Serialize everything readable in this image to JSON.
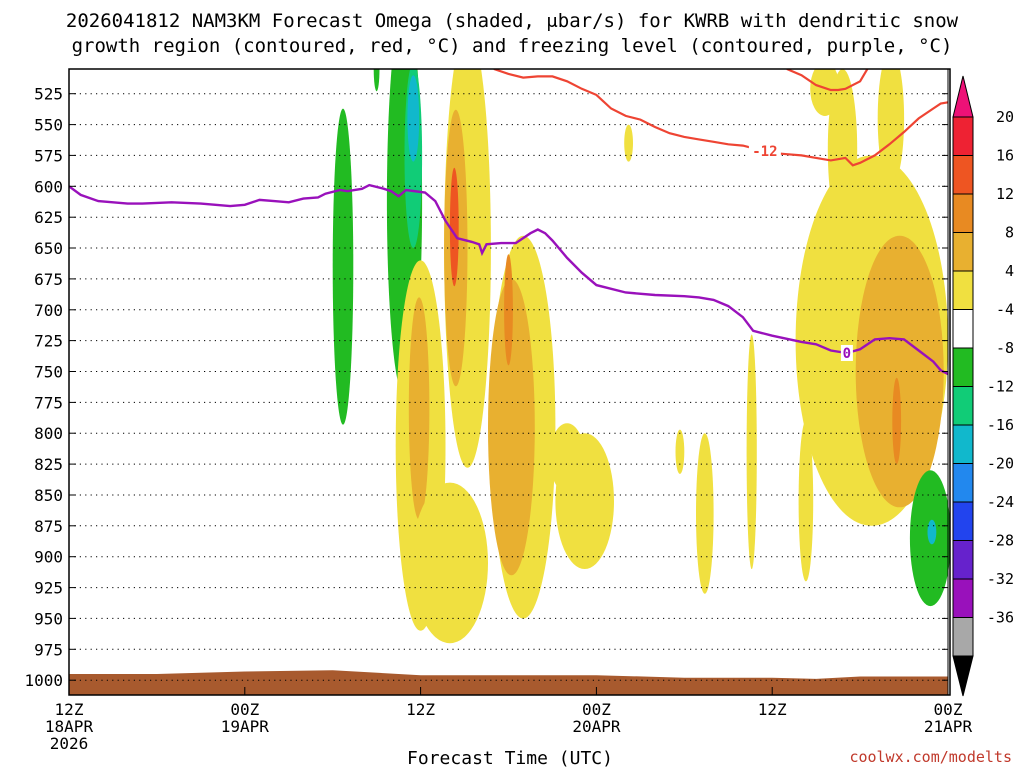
{
  "chart_data": {
    "type": "heatmap",
    "title_lines": [
      "2026041812 NAM3KM Forecast Omega (shaded, μbar/s) for KWRB with dendritic snow",
      "growth region (contoured, red, °C) and freezing level (contoured, purple, °C)"
    ],
    "xlabel": "Forecast Time (UTC)",
    "ylabel": "",
    "credit": "coolwx.com/modelts",
    "x_range_hours": [
      0,
      60
    ],
    "y_range_hpa": [
      505,
      1012
    ],
    "x_ticks": [
      {
        "hour": 0,
        "lines": [
          "12Z",
          "18APR",
          "2026"
        ]
      },
      {
        "hour": 12,
        "lines": [
          "00Z",
          "19APR"
        ]
      },
      {
        "hour": 24,
        "lines": [
          "12Z"
        ]
      },
      {
        "hour": 36,
        "lines": [
          "00Z",
          "20APR"
        ]
      },
      {
        "hour": 48,
        "lines": [
          "12Z"
        ]
      },
      {
        "hour": 60,
        "lines": [
          "00Z",
          "21APR"
        ]
      }
    ],
    "y_ticks": [
      525,
      550,
      575,
      600,
      625,
      650,
      675,
      700,
      725,
      750,
      775,
      800,
      825,
      850,
      875,
      900,
      925,
      950,
      975,
      1000
    ],
    "colorbar": {
      "labels": [
        "20",
        "16",
        "12",
        "8",
        "4",
        "-4",
        "-8",
        "-12",
        "-16",
        "-20",
        "-24",
        "-28",
        "-32",
        "-36"
      ],
      "colors": [
        "#ee2233",
        "#ee5522",
        "#e88a22",
        "#e8b030",
        "#f0e040",
        "#ffffff",
        "#22bb22",
        "#11cc77",
        "#11b8cc",
        "#2288ee",
        "#2244ee",
        "#6622cc",
        "#9911bb",
        "#a8a8a8"
      ],
      "top_color": "#ee1177",
      "bottom_color": "#000000"
    },
    "freezing_level": {
      "name": "freezing level (0°C)",
      "color": "#9911bb",
      "label": "0",
      "label_hour": 53.1,
      "points": [
        [
          0,
          600
        ],
        [
          0.8,
          607
        ],
        [
          2,
          612
        ],
        [
          4,
          614
        ],
        [
          5,
          614
        ],
        [
          7,
          613
        ],
        [
          9,
          614
        ],
        [
          11,
          616
        ],
        [
          12,
          615
        ],
        [
          13,
          611
        ],
        [
          14,
          612
        ],
        [
          15,
          613
        ],
        [
          16,
          610
        ],
        [
          17,
          609
        ],
        [
          17.5,
          606
        ],
        [
          18.5,
          603
        ],
        [
          19,
          604
        ],
        [
          20,
          602
        ],
        [
          20.5,
          599
        ],
        [
          21.5,
          602
        ],
        [
          22,
          604
        ],
        [
          22.5,
          608
        ],
        [
          23,
          603
        ],
        [
          24.3,
          605
        ],
        [
          25,
          612
        ],
        [
          25.7,
          628
        ],
        [
          26.5,
          642
        ],
        [
          27.5,
          645
        ],
        [
          28,
          647
        ],
        [
          28.2,
          654
        ],
        [
          28.5,
          647
        ],
        [
          29.5,
          646
        ],
        [
          30.5,
          646
        ],
        [
          31.5,
          638
        ],
        [
          32,
          635
        ],
        [
          32.5,
          638
        ],
        [
          33,
          644
        ],
        [
          34,
          658
        ],
        [
          35,
          670
        ],
        [
          36,
          680
        ],
        [
          38,
          686
        ],
        [
          40,
          688
        ],
        [
          42,
          689
        ],
        [
          43,
          690
        ],
        [
          44,
          692
        ],
        [
          45,
          697
        ],
        [
          46,
          706
        ],
        [
          46.7,
          717
        ],
        [
          48,
          721
        ],
        [
          50,
          726
        ],
        [
          51,
          728
        ],
        [
          52,
          733
        ],
        [
          53.1,
          735
        ],
        [
          54,
          732
        ],
        [
          55,
          724
        ],
        [
          56,
          723
        ],
        [
          57,
          724
        ],
        [
          58,
          733
        ],
        [
          59,
          742
        ],
        [
          59.5,
          749
        ],
        [
          60,
          752
        ]
      ]
    },
    "dgz_contour": {
      "name": "dendritic snow growth region (-12°C)",
      "color": "#ee4433",
      "label": "-12",
      "label_hour": 47.5,
      "points": [
        [
          29,
          505
        ],
        [
          30,
          509
        ],
        [
          31,
          512
        ],
        [
          32,
          511
        ],
        [
          33,
          511
        ],
        [
          34,
          515
        ],
        [
          35,
          521
        ],
        [
          36,
          526
        ],
        [
          37,
          537
        ],
        [
          38,
          543
        ],
        [
          39,
          546
        ],
        [
          40,
          552
        ],
        [
          41,
          557
        ],
        [
          42,
          560
        ],
        [
          43,
          562
        ],
        [
          44,
          564
        ],
        [
          45,
          566
        ],
        [
          46,
          567
        ],
        [
          47,
          570
        ],
        [
          48,
          573
        ],
        [
          49,
          574
        ],
        [
          50,
          575
        ],
        [
          51,
          577
        ],
        [
          52,
          579
        ],
        [
          53,
          577
        ],
        [
          53.5,
          583
        ],
        [
          54,
          581
        ],
        [
          55,
          575
        ],
        [
          56,
          566
        ],
        [
          57,
          556
        ],
        [
          58,
          545
        ],
        [
          59,
          537
        ],
        [
          59.5,
          533
        ],
        [
          60,
          532
        ]
      ],
      "upper_points": [
        [
          49,
          505
        ],
        [
          50,
          510
        ],
        [
          51,
          518
        ],
        [
          52,
          522
        ],
        [
          52.5,
          522
        ],
        [
          53,
          521
        ],
        [
          54,
          515
        ],
        [
          54.5,
          505
        ]
      ]
    },
    "omega_blobs": [
      {
        "hour": 18.7,
        "hpa": 665,
        "width_h": 0.7,
        "half_depth_hpa": 128,
        "value": -6
      },
      {
        "hour": 22.9,
        "hpa": 612,
        "width_h": 1.2,
        "half_depth_hpa": 158,
        "value": -6
      },
      {
        "hour": 23.5,
        "hpa": 575,
        "width_h": 0.6,
        "half_depth_hpa": 75,
        "value": -10
      },
      {
        "hour": 23.5,
        "hpa": 545,
        "width_h": 0.4,
        "half_depth_hpa": 35,
        "value": -13
      },
      {
        "hour": 21.0,
        "hpa": 505,
        "width_h": 0.2,
        "half_depth_hpa": 18,
        "value": -6
      },
      {
        "hour": 27.2,
        "hpa": 650,
        "width_h": 1.6,
        "half_depth_hpa": 178,
        "value": 6
      },
      {
        "hour": 26.4,
        "hpa": 650,
        "width_h": 0.8,
        "half_depth_hpa": 112,
        "value": 11
      },
      {
        "hour": 26.3,
        "hpa": 633,
        "width_h": 0.3,
        "half_depth_hpa": 48,
        "value": 18
      },
      {
        "hour": 31.0,
        "hpa": 795,
        "width_h": 2.2,
        "half_depth_hpa": 155,
        "value": 7
      },
      {
        "hour": 30.2,
        "hpa": 795,
        "width_h": 1.6,
        "half_depth_hpa": 120,
        "value": 10
      },
      {
        "hour": 30.0,
        "hpa": 700,
        "width_h": 0.3,
        "half_depth_hpa": 45,
        "value": 14
      },
      {
        "hour": 24.0,
        "hpa": 810,
        "width_h": 1.7,
        "half_depth_hpa": 150,
        "value": 6
      },
      {
        "hour": 23.9,
        "hpa": 780,
        "width_h": 0.7,
        "half_depth_hpa": 90,
        "value": 10
      },
      {
        "hour": 26.0,
        "hpa": 905,
        "width_h": 2.6,
        "half_depth_hpa": 65,
        "value": 6
      },
      {
        "hour": 35.2,
        "hpa": 855,
        "width_h": 2.0,
        "half_depth_hpa": 55,
        "value": 6
      },
      {
        "hour": 34.0,
        "hpa": 820,
        "width_h": 1.2,
        "half_depth_hpa": 28,
        "value": 6
      },
      {
        "hour": 38.2,
        "hpa": 565,
        "width_h": 0.3,
        "half_depth_hpa": 15,
        "value": 5
      },
      {
        "hour": 41.7,
        "hpa": 815,
        "width_h": 0.3,
        "half_depth_hpa": 18,
        "value": 5
      },
      {
        "hour": 43.4,
        "hpa": 865,
        "width_h": 0.6,
        "half_depth_hpa": 65,
        "value": 5
      },
      {
        "hour": 46.6,
        "hpa": 815,
        "width_h": 0.35,
        "half_depth_hpa": 95,
        "value": 5
      },
      {
        "hour": 50.3,
        "hpa": 855,
        "width_h": 0.5,
        "half_depth_hpa": 65,
        "value": 5
      },
      {
        "hour": 54.8,
        "hpa": 725,
        "width_h": 5.2,
        "half_depth_hpa": 150,
        "value": 6
      },
      {
        "hour": 56.7,
        "hpa": 750,
        "width_h": 3.0,
        "half_depth_hpa": 110,
        "value": 9
      },
      {
        "hour": 56.5,
        "hpa": 790,
        "width_h": 0.3,
        "half_depth_hpa": 35,
        "value": 13
      },
      {
        "hour": 52.8,
        "hpa": 570,
        "width_h": 1.0,
        "half_depth_hpa": 65,
        "value": 6
      },
      {
        "hour": 56.1,
        "hpa": 545,
        "width_h": 0.9,
        "half_depth_hpa": 55,
        "value": 5
      },
      {
        "hour": 51.6,
        "hpa": 521,
        "width_h": 1.0,
        "half_depth_hpa": 22,
        "value": 5
      },
      {
        "hour": 58.8,
        "hpa": 885,
        "width_h": 1.4,
        "half_depth_hpa": 55,
        "value": -6
      },
      {
        "hour": 58.9,
        "hpa": 880,
        "width_h": 0.3,
        "half_depth_hpa": 10,
        "value": -12
      },
      {
        "hour": 48.7,
        "hpa": 1000,
        "width_h": 0.1,
        "half_depth_hpa": 5,
        "value": 0
      }
    ],
    "terrain": {
      "color": "#a85a2e",
      "top_hpa": [
        [
          0,
          995
        ],
        [
          6,
          995
        ],
        [
          12,
          993
        ],
        [
          18,
          992
        ],
        [
          24,
          996
        ],
        [
          30,
          996
        ],
        [
          36,
          996
        ],
        [
          42,
          998
        ],
        [
          48,
          998
        ],
        [
          51,
          999
        ],
        [
          54,
          997
        ],
        [
          57,
          997
        ],
        [
          60,
          997
        ]
      ],
      "bottom_hpa": 1012
    },
    "grid": true
  }
}
